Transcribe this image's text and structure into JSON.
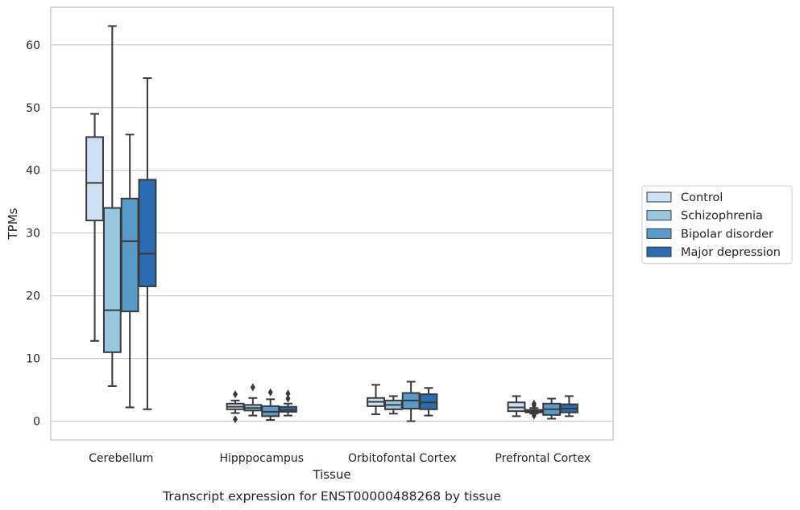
{
  "chart_data": {
    "type": "box",
    "title": "",
    "caption": "Transcript expression for ENST00000488268 by tissue",
    "xlabel": "Tissue",
    "ylabel": "TPMs",
    "ylim": [
      -3,
      66
    ],
    "yticks": [
      0,
      10,
      20,
      30,
      40,
      50,
      60
    ],
    "ytick_labels": [
      "0",
      "10",
      "20",
      "30",
      "40",
      "50",
      "60"
    ],
    "grid": "horizontal",
    "legend_placement": "right",
    "categories": [
      "Cerebellum",
      "Hipppocampus",
      "Orbitofontal Cortex",
      "Prefrontal Cortex"
    ],
    "series": [
      {
        "name": "Control",
        "color": "#cfe0f1",
        "boxes": [
          {
            "whislo": 12.8,
            "q1": 32.0,
            "med": 38.0,
            "q3": 45.3,
            "whishi": 49.0,
            "fliers": []
          },
          {
            "whislo": 1.3,
            "q1": 1.9,
            "med": 2.3,
            "q3": 2.8,
            "whishi": 3.3,
            "fliers": [
              4.3,
              0.3
            ]
          },
          {
            "whislo": 1.1,
            "q1": 2.4,
            "med": 3.1,
            "q3": 3.7,
            "whishi": 5.8,
            "fliers": []
          },
          {
            "whislo": 0.8,
            "q1": 1.6,
            "med": 2.2,
            "q3": 3.0,
            "whishi": 4.0,
            "fliers": []
          }
        ]
      },
      {
        "name": "Schizophrenia",
        "color": "#9ac7e0",
        "boxes": [
          {
            "whislo": 5.6,
            "q1": 11.0,
            "med": 17.7,
            "q3": 34.0,
            "whishi": 63.0,
            "fliers": []
          },
          {
            "whislo": 0.9,
            "q1": 1.7,
            "med": 2.1,
            "q3": 2.6,
            "whishi": 3.7,
            "fliers": [
              5.4
            ]
          },
          {
            "whislo": 1.2,
            "q1": 1.9,
            "med": 2.6,
            "q3": 3.3,
            "whishi": 4.0,
            "fliers": []
          },
          {
            "whislo": 1.2,
            "q1": 1.4,
            "med": 1.6,
            "q3": 1.8,
            "whishi": 2.1,
            "fliers": [
              2.8,
              2.5,
              0.9
            ]
          }
        ]
      },
      {
        "name": "Bipolar disorder",
        "color": "#5a9ac9",
        "boxes": [
          {
            "whislo": 2.2,
            "q1": 17.5,
            "med": 28.7,
            "q3": 35.5,
            "whishi": 45.7,
            "fliers": []
          },
          {
            "whislo": 0.2,
            "q1": 0.8,
            "med": 1.5,
            "q3": 2.4,
            "whishi": 3.5,
            "fliers": [
              4.6
            ]
          },
          {
            "whislo": 0.0,
            "q1": 2.0,
            "med": 3.3,
            "q3": 4.5,
            "whishi": 6.3,
            "fliers": []
          },
          {
            "whislo": 0.4,
            "q1": 1.0,
            "med": 1.9,
            "q3": 2.8,
            "whishi": 3.6,
            "fliers": []
          }
        ]
      },
      {
        "name": "Major depression",
        "color": "#2b6cb0",
        "boxes": [
          {
            "whislo": 1.9,
            "q1": 21.5,
            "med": 26.7,
            "q3": 38.5,
            "whishi": 54.7,
            "fliers": []
          },
          {
            "whislo": 0.9,
            "q1": 1.5,
            "med": 1.8,
            "q3": 2.3,
            "whishi": 2.8,
            "fliers": [
              4.4,
              3.6
            ]
          },
          {
            "whislo": 0.9,
            "q1": 1.9,
            "med": 3.0,
            "q3": 4.3,
            "whishi": 5.3,
            "fliers": []
          },
          {
            "whislo": 0.8,
            "q1": 1.4,
            "med": 2.0,
            "q3": 2.7,
            "whishi": 4.0,
            "fliers": []
          }
        ]
      }
    ]
  }
}
